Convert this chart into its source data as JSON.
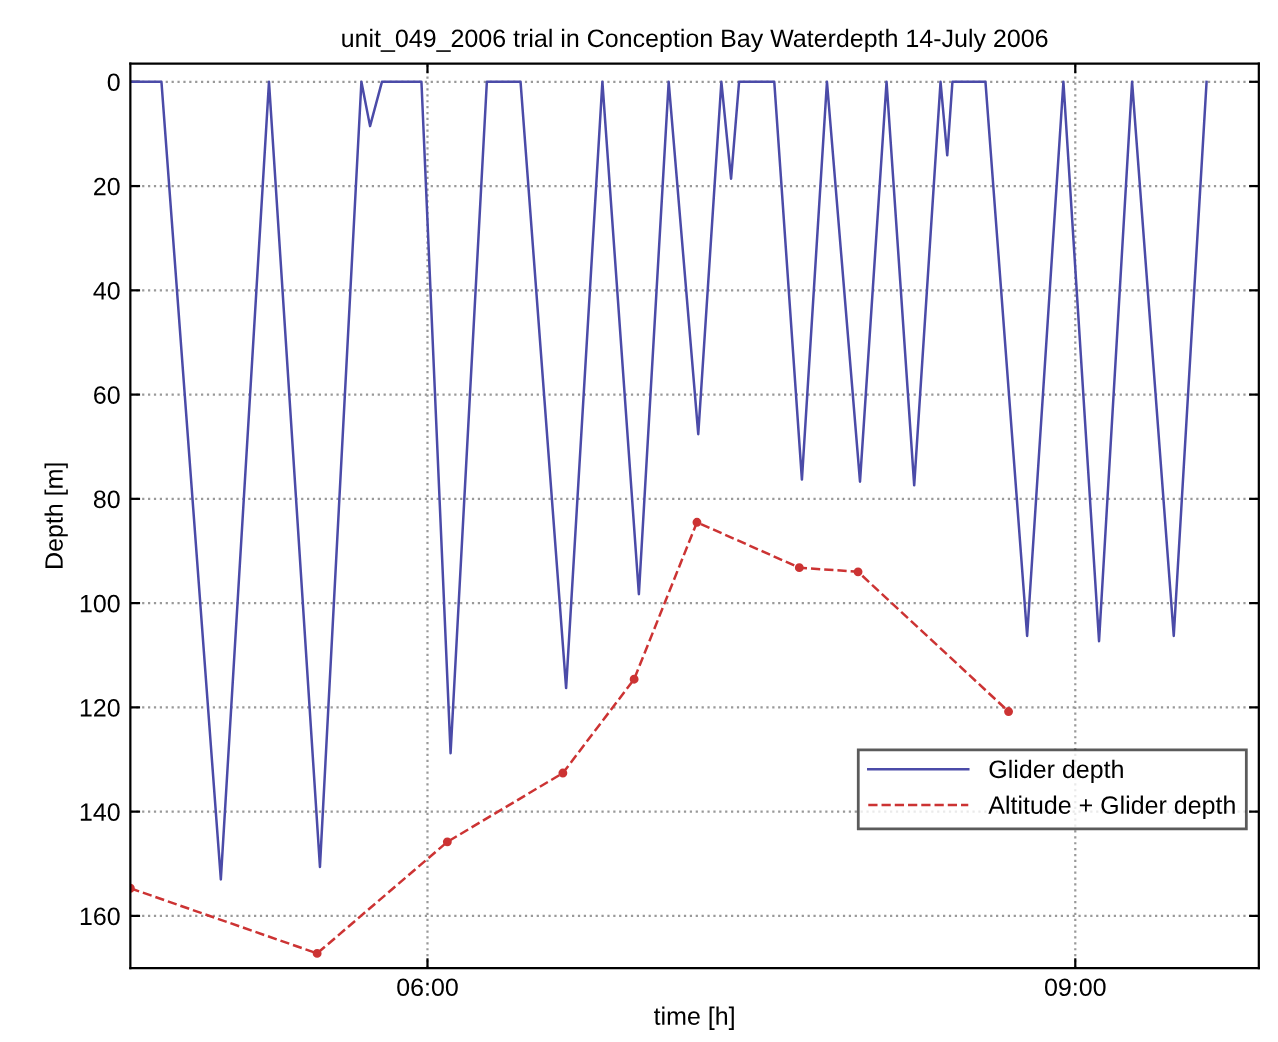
{
  "chart_data": {
    "type": "line",
    "title": "unit_049_2006 trial in Conception Bay Waterdepth 14-July 2006",
    "xlabel": "time [h]",
    "ylabel": "Depth [m]",
    "series": [
      {
        "name": "Glider depth",
        "color": "#4b4ba8",
        "marker": "none",
        "line_style": "solid",
        "x": [
          4.624,
          4.768,
          5.043,
          5.266,
          5.502,
          5.694,
          5.734,
          5.789,
          5.927,
          5.972,
          6.107,
          6.275,
          6.431,
          6.642,
          6.81,
          6.979,
          7.117,
          7.254,
          7.361,
          7.406,
          7.443,
          7.606,
          7.734,
          7.85,
          8.003,
          8.126,
          8.254,
          8.376,
          8.407,
          8.431,
          8.584,
          8.777,
          8.945,
          9.11,
          9.263,
          9.456,
          9.608
        ],
        "values": [
          0,
          0,
          153,
          0,
          150.6,
          0,
          8.5,
          0,
          0,
          0,
          128.8,
          0,
          0,
          116.3,
          0,
          98.3,
          0,
          67.6,
          0,
          18.6,
          0,
          0,
          76.3,
          0,
          76.7,
          0,
          77.4,
          0,
          14.1,
          0,
          0,
          106.3,
          0,
          107.3,
          0,
          106.3,
          0
        ]
      },
      {
        "name": "Altitude + Glider depth",
        "color": "#cc3333",
        "marker": "circle",
        "line_style": "dashed",
        "x": [
          4.624,
          5.489,
          6.092,
          6.627,
          6.957,
          7.248,
          7.722,
          7.994,
          8.691
        ],
        "values": [
          154.7,
          167.2,
          145.8,
          132.6,
          114.6,
          84.5,
          93.2,
          94.0,
          120.8
        ]
      }
    ],
    "xlim": [
      4.624,
      9.85
    ],
    "ylim": [
      170,
      -3.5
    ],
    "xticks": [
      {
        "value": 6,
        "label": "06:00"
      },
      {
        "value": 9,
        "label": "09:00"
      }
    ],
    "yticks": [
      0,
      20,
      40,
      60,
      80,
      100,
      120,
      140,
      160
    ],
    "grid": true,
    "legend": "bottom right"
  }
}
